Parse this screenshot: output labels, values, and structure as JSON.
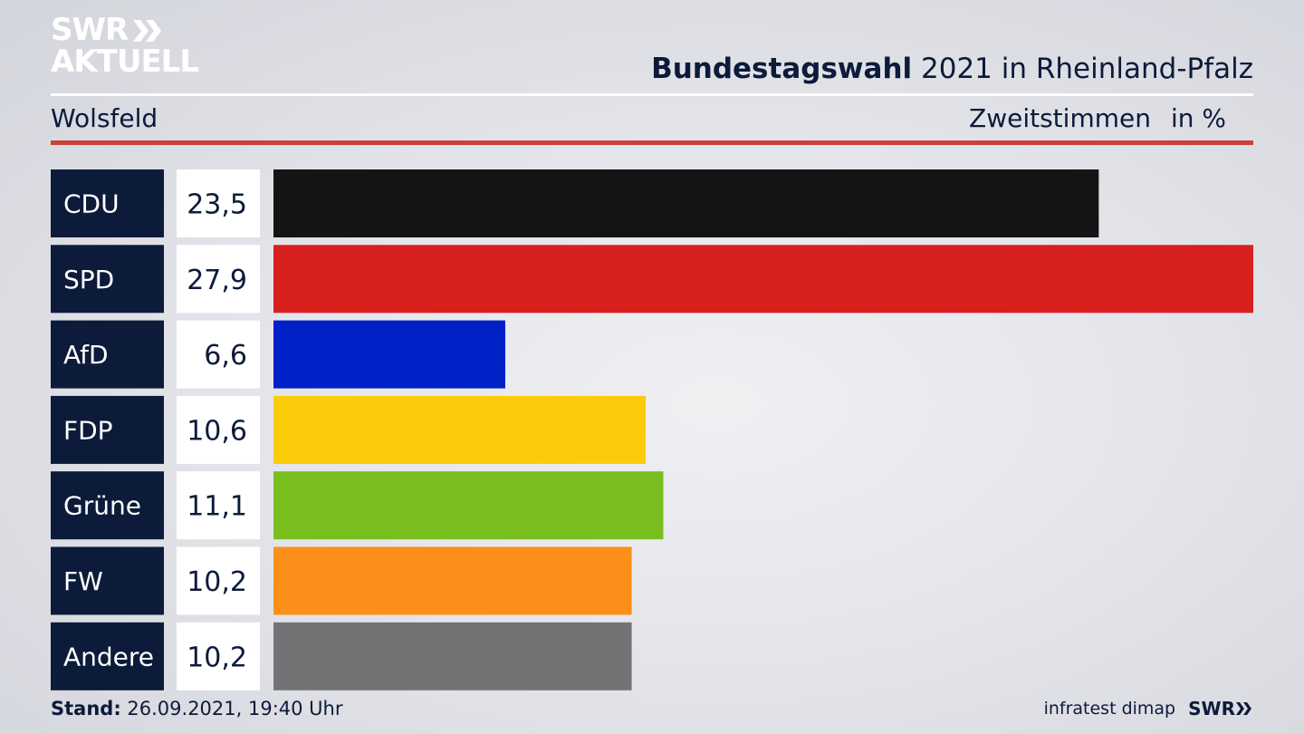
{
  "header": {
    "logo_line1": "SWR",
    "logo_line2": "AKTUELL",
    "title_bold": "Bundestagswahl",
    "title_rest": " 2021 in Rheinland-Pfalz",
    "region": "Wolsfeld",
    "measure": "Zweitstimmen",
    "unit": "in %"
  },
  "footer": {
    "stand_label": "Stand:",
    "stand_value": " 26.09.2021, 19:40 Uhr",
    "source": "infratest dimap",
    "brand": "SWR"
  },
  "chart_data": {
    "type": "bar",
    "orientation": "horizontal",
    "categories": [
      "CDU",
      "SPD",
      "AfD",
      "FDP",
      "Grüne",
      "FW",
      "Andere"
    ],
    "values": [
      23.5,
      27.9,
      6.6,
      10.6,
      11.1,
      10.2,
      10.2
    ],
    "value_labels": [
      "23,5",
      "27,9",
      "6,6",
      "10,6",
      "11,1",
      "10,2",
      "10,2"
    ],
    "colors": [
      "#141414",
      "#d8201f",
      "#0020c8",
      "#fccb0a",
      "#79bd1f",
      "#fb8f19",
      "#737375"
    ],
    "xlim": [
      0,
      27.9
    ],
    "title": "Bundestagswahl 2021 in Rheinland-Pfalz",
    "xlabel": "",
    "ylabel": ""
  }
}
